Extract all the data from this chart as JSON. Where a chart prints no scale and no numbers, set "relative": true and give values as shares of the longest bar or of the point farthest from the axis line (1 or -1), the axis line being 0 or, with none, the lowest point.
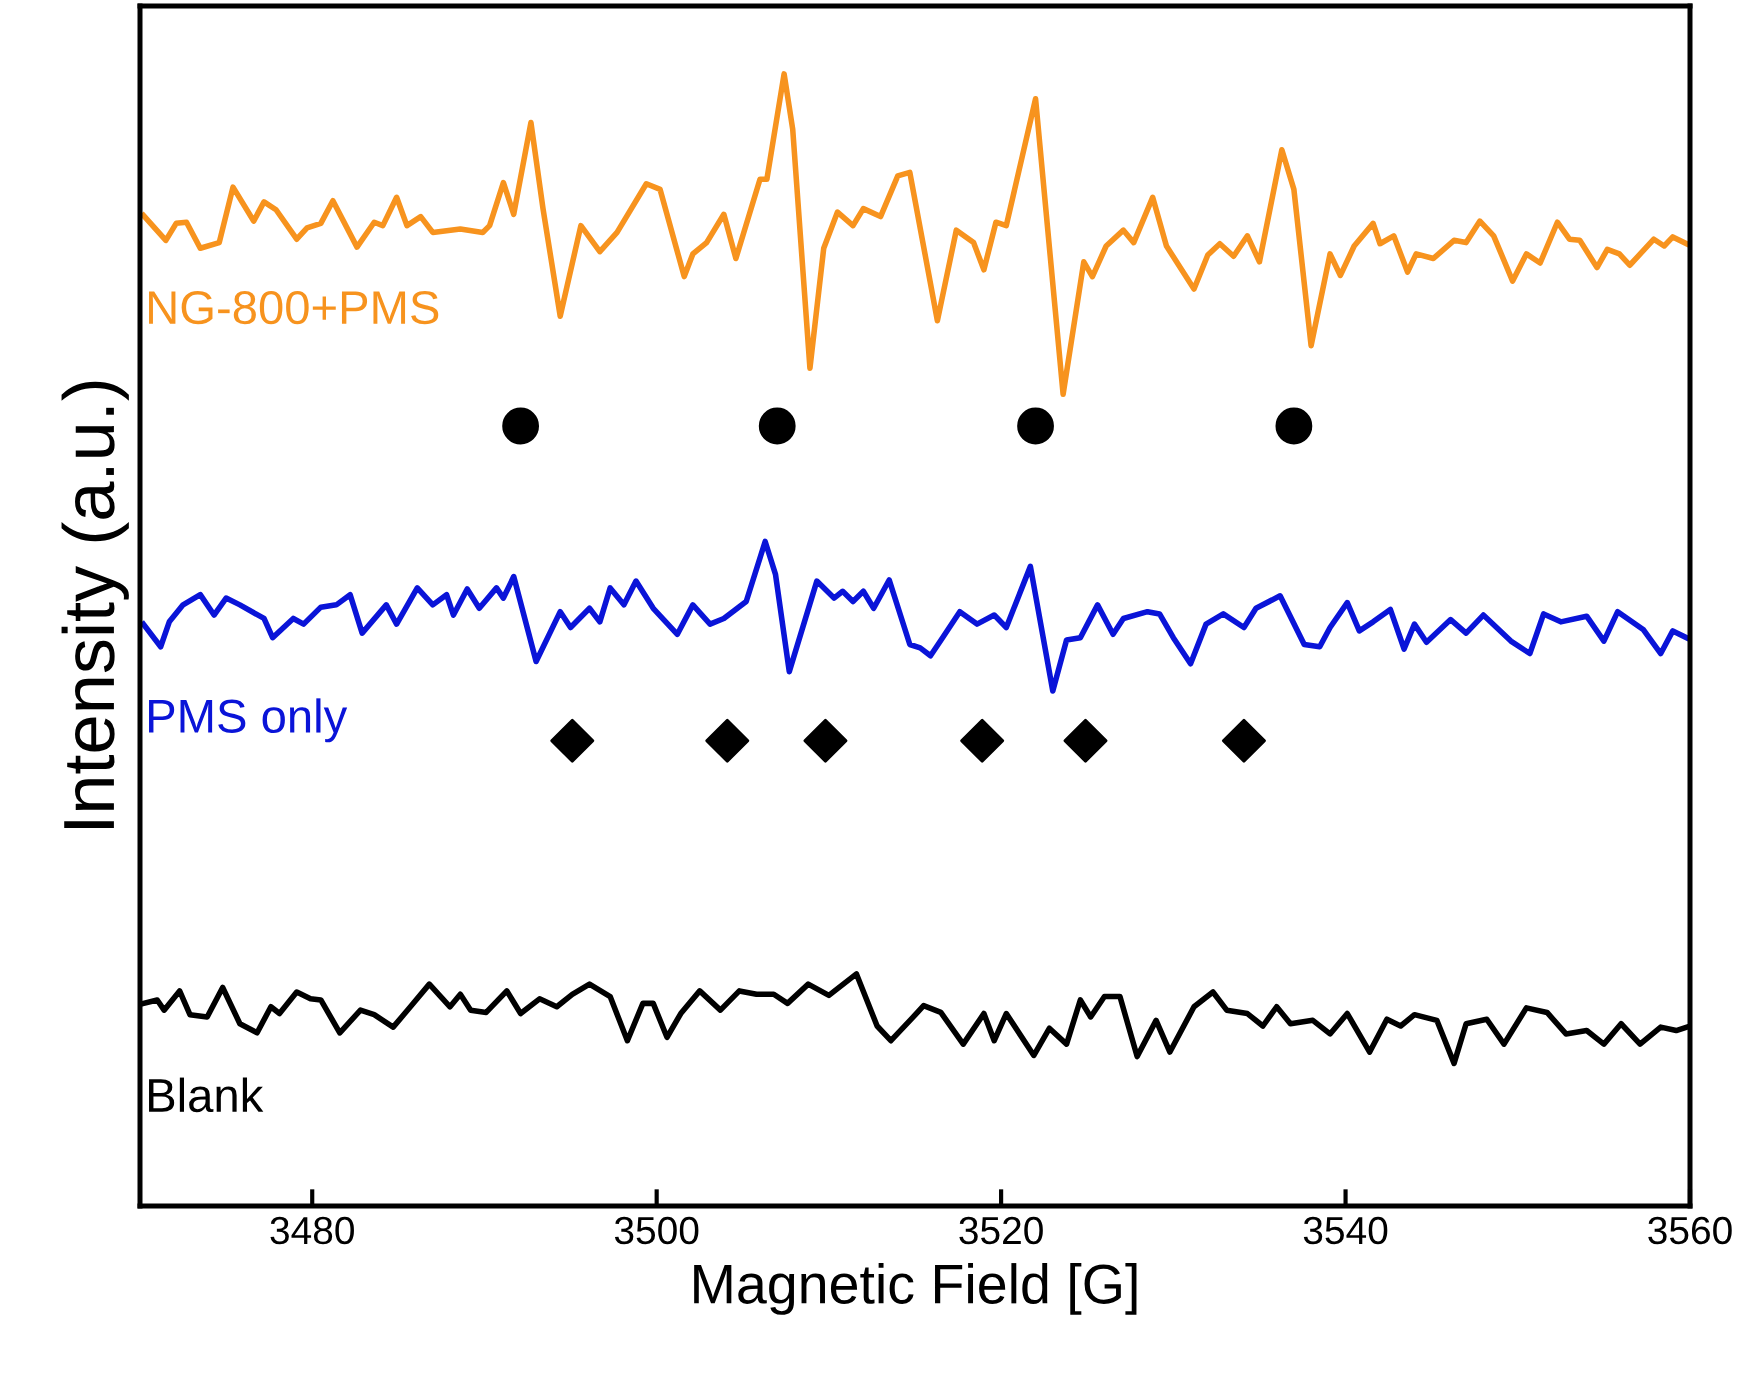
{
  "chart_data": {
    "type": "line",
    "relative": true,
    "xlabel": "Magnetic Field [G]",
    "ylabel": "Intensity (a.u.)",
    "xlim": [
      3470,
      3560
    ],
    "xticks": [
      3480,
      3500,
      3520,
      3540,
      3560
    ],
    "grid": false,
    "legend": false,
    "tick_labels": "x",
    "series": [
      {
        "name": "NG-800+PMS",
        "color": "#f7931e",
        "marker": "none",
        "x": [
          3470.2,
          3471.5,
          3472.1,
          3472.7,
          3473.5,
          3474.6,
          3475.4,
          3476.6,
          3477.2,
          3477.9,
          3479.1,
          3479.7,
          3480.5,
          3481.2,
          3482.6,
          3483.6,
          3484.1,
          3484.9,
          3485.5,
          3486.3,
          3487.0,
          3488.6,
          3489.9,
          3490.3,
          3491.1,
          3491.7,
          3492.7,
          3493.4,
          3494.4,
          3495.6,
          3496.7,
          3497.7,
          3499.4,
          3500.2,
          3501.6,
          3502.1,
          3502.9,
          3503.9,
          3504.6,
          3506.0,
          3506.4,
          3507.4,
          3507.9,
          3508.9,
          3509.7,
          3510.5,
          3511.4,
          3512.0,
          3513.0,
          3514.0,
          3514.7,
          3516.3,
          3517.4,
          3518.4,
          3519.0,
          3519.7,
          3520.3,
          3522.0,
          3523.6,
          3524.8,
          3525.3,
          3526.1,
          3527.1,
          3527.7,
          3528.8,
          3529.6,
          3531.2,
          3532.0,
          3532.7,
          3533.5,
          3534.3,
          3535.0,
          3536.3,
          3537.0,
          3538.0,
          3539.1,
          3539.7,
          3540.5,
          3541.6,
          3542.0,
          3542.8,
          3543.6,
          3544.1,
          3545.1,
          3546.3,
          3547.0,
          3547.8,
          3548.6,
          3549.7,
          3550.5,
          3551.3,
          3552.3,
          3553.0,
          3553.6,
          3554.6,
          3555.2,
          3555.9,
          3556.5,
          3557.9,
          3558.5,
          3559.0,
          3559.8
        ],
        "values": [
          0.875,
          0.853,
          0.868,
          0.869,
          0.846,
          0.851,
          0.9,
          0.87,
          0.887,
          0.88,
          0.854,
          0.864,
          0.868,
          0.888,
          0.847,
          0.869,
          0.866,
          0.891,
          0.866,
          0.874,
          0.86,
          0.863,
          0.86,
          0.866,
          0.904,
          0.876,
          0.957,
          0.881,
          0.786,
          0.866,
          0.843,
          0.86,
          0.903,
          0.898,
          0.821,
          0.841,
          0.851,
          0.876,
          0.837,
          0.907,
          0.907,
          1.0,
          0.951,
          0.74,
          0.846,
          0.878,
          0.866,
          0.881,
          0.874,
          0.91,
          0.913,
          0.782,
          0.862,
          0.851,
          0.827,
          0.869,
          0.866,
          0.978,
          0.717,
          0.834,
          0.821,
          0.848,
          0.862,
          0.851,
          0.891,
          0.848,
          0.81,
          0.84,
          0.85,
          0.839,
          0.857,
          0.834,
          0.933,
          0.898,
          0.76,
          0.841,
          0.822,
          0.848,
          0.868,
          0.85,
          0.857,
          0.825,
          0.841,
          0.837,
          0.853,
          0.851,
          0.87,
          0.857,
          0.817,
          0.841,
          0.833,
          0.869,
          0.854,
          0.853,
          0.829,
          0.845,
          0.841,
          0.831,
          0.854,
          0.848,
          0.856,
          0.85
        ]
      },
      {
        "name": "PMS only",
        "color": "#0a14d8",
        "marker": "none",
        "x": [
          3470.2,
          3471.2,
          3471.7,
          3472.5,
          3473.5,
          3474.3,
          3475.0,
          3475.8,
          3477.2,
          3477.7,
          3478.9,
          3479.5,
          3480.5,
          3481.4,
          3482.2,
          3482.9,
          3484.3,
          3484.9,
          3486.1,
          3487.0,
          3487.8,
          3488.2,
          3489.0,
          3489.7,
          3490.7,
          3491.1,
          3491.7,
          3493.0,
          3494.4,
          3495.0,
          3496.1,
          3496.7,
          3497.3,
          3498.1,
          3498.8,
          3499.8,
          3501.2,
          3502.1,
          3503.1,
          3503.9,
          3505.2,
          3506.3,
          3506.9,
          3507.7,
          3509.3,
          3510.3,
          3510.8,
          3511.4,
          3512.0,
          3512.6,
          3513.5,
          3514.7,
          3515.3,
          3515.9,
          3516.6,
          3517.6,
          3518.6,
          3519.6,
          3520.3,
          3521.7,
          3523.0,
          3523.8,
          3524.6,
          3525.6,
          3526.5,
          3527.1,
          3528.5,
          3529.2,
          3530.0,
          3531.0,
          3531.9,
          3532.9,
          3534.1,
          3534.8,
          3536.2,
          3537.6,
          3538.5,
          3539.1,
          3540.1,
          3540.8,
          3541.6,
          3542.6,
          3543.4,
          3544.0,
          3544.7,
          3546.1,
          3547.0,
          3548.0,
          3549.6,
          3550.7,
          3551.5,
          3552.5,
          3554.0,
          3555.0,
          3555.8,
          3557.3,
          3558.3,
          3559.0,
          3559.8
        ],
        "values": [
          0.514,
          0.494,
          0.516,
          0.531,
          0.54,
          0.522,
          0.537,
          0.531,
          0.519,
          0.502,
          0.519,
          0.514,
          0.529,
          0.531,
          0.54,
          0.506,
          0.531,
          0.514,
          0.546,
          0.531,
          0.54,
          0.522,
          0.545,
          0.528,
          0.546,
          0.537,
          0.556,
          0.481,
          0.525,
          0.511,
          0.528,
          0.516,
          0.546,
          0.531,
          0.552,
          0.528,
          0.505,
          0.531,
          0.514,
          0.519,
          0.534,
          0.587,
          0.558,
          0.472,
          0.552,
          0.537,
          0.543,
          0.534,
          0.543,
          0.528,
          0.553,
          0.496,
          0.493,
          0.486,
          0.502,
          0.525,
          0.514,
          0.522,
          0.511,
          0.565,
          0.455,
          0.5,
          0.502,
          0.531,
          0.505,
          0.519,
          0.525,
          0.523,
          0.502,
          0.479,
          0.514,
          0.523,
          0.511,
          0.528,
          0.539,
          0.496,
          0.494,
          0.511,
          0.533,
          0.508,
          0.516,
          0.527,
          0.492,
          0.514,
          0.498,
          0.518,
          0.506,
          0.522,
          0.499,
          0.488,
          0.523,
          0.516,
          0.521,
          0.499,
          0.525,
          0.509,
          0.488,
          0.508,
          0.502
        ]
      },
      {
        "name": "Blank",
        "color": "#000000",
        "marker": "none",
        "x": [
          3470.2,
          3471.0,
          3471.4,
          3472.3,
          3472.9,
          3473.9,
          3474.8,
          3475.8,
          3476.8,
          3477.6,
          3478.1,
          3479.1,
          3479.9,
          3480.5,
          3481.6,
          3482.8,
          3483.6,
          3484.7,
          3485.7,
          3486.8,
          3488.0,
          3488.6,
          3489.2,
          3490.1,
          3491.3,
          3492.1,
          3493.2,
          3494.2,
          3495.1,
          3496.1,
          3497.3,
          3498.3,
          3499.2,
          3499.8,
          3500.6,
          3501.4,
          3502.5,
          3503.7,
          3504.8,
          3505.8,
          3506.8,
          3507.6,
          3508.8,
          3510.0,
          3511.6,
          3512.8,
          3513.6,
          3514.9,
          3515.5,
          3516.5,
          3517.8,
          3519.0,
          3519.6,
          3520.3,
          3521.9,
          3522.8,
          3523.8,
          3524.6,
          3525.2,
          3526.0,
          3526.9,
          3527.9,
          3529.0,
          3529.8,
          3531.2,
          3532.3,
          3533.1,
          3534.3,
          3535.2,
          3536.0,
          3536.8,
          3538.1,
          3539.1,
          3540.1,
          3541.4,
          3542.4,
          3543.2,
          3544.0,
          3545.3,
          3546.3,
          3547.0,
          3548.2,
          3549.2,
          3550.5,
          3551.7,
          3552.8,
          3554.0,
          3555.0,
          3556.0,
          3557.1,
          3558.3,
          3559.2,
          3559.8
        ],
        "values": [
          0.179,
          0.182,
          0.173,
          0.19,
          0.169,
          0.167,
          0.193,
          0.161,
          0.153,
          0.176,
          0.17,
          0.189,
          0.183,
          0.182,
          0.153,
          0.173,
          0.169,
          0.158,
          0.176,
          0.196,
          0.176,
          0.187,
          0.173,
          0.171,
          0.19,
          0.17,
          0.183,
          0.176,
          0.187,
          0.196,
          0.185,
          0.146,
          0.179,
          0.179,
          0.149,
          0.17,
          0.19,
          0.173,
          0.19,
          0.187,
          0.187,
          0.179,
          0.196,
          0.186,
          0.205,
          0.159,
          0.146,
          0.167,
          0.177,
          0.171,
          0.143,
          0.17,
          0.146,
          0.17,
          0.133,
          0.157,
          0.143,
          0.182,
          0.167,
          0.185,
          0.185,
          0.132,
          0.164,
          0.136,
          0.176,
          0.189,
          0.173,
          0.17,
          0.159,
          0.176,
          0.161,
          0.164,
          0.152,
          0.17,
          0.136,
          0.165,
          0.159,
          0.169,
          0.164,
          0.126,
          0.161,
          0.165,
          0.143,
          0.175,
          0.171,
          0.152,
          0.155,
          0.143,
          0.161,
          0.143,
          0.158,
          0.155,
          0.158
        ]
      },
      {
        "type": "scatter",
        "color": "#000000",
        "marker": "circle",
        "x": [
          3492.1,
          3507.0,
          3522.0,
          3537.0
        ],
        "values": [
          0.689,
          0.689,
          0.689,
          0.689
        ]
      },
      {
        "type": "scatter",
        "color": "#000000",
        "marker": "diamond",
        "x": [
          3495.1,
          3504.1,
          3509.8,
          3518.9,
          3524.9,
          3534.1
        ],
        "values": [
          0.411,
          0.411,
          0.411,
          0.411,
          0.411,
          0.411
        ]
      }
    ]
  }
}
